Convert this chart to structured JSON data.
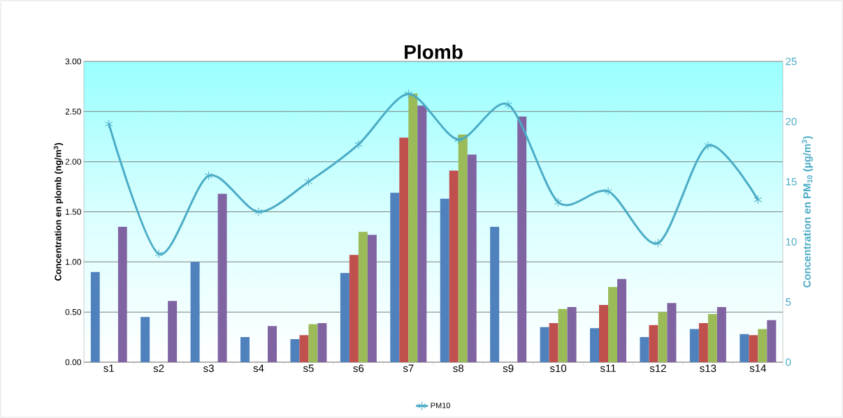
{
  "chart_data": {
    "type": "bar",
    "title": "Plomb",
    "ylabel": "Concentration en plomb (ng/m$^{3}$)",
    "y2label": "Concentration en PM$_{10}$ (µg/m$^{3}$)",
    "categories": [
      "s1",
      "s2",
      "s3",
      "s4",
      "s5",
      "s6",
      "s7",
      "s8",
      "s9",
      "s10",
      "s11",
      "s12",
      "s13",
      "s14"
    ],
    "series": [
      {
        "color": "#4f81bd",
        "values": [
          0.9,
          0.45,
          1.0,
          0.25,
          0.23,
          0.89,
          1.69,
          1.63,
          1.35,
          0.35,
          0.34,
          0.25,
          0.33,
          0.28
        ]
      },
      {
        "color": "#c0504d",
        "values": [
          null,
          null,
          null,
          null,
          0.27,
          1.07,
          2.24,
          1.91,
          null,
          0.39,
          0.57,
          0.37,
          0.39,
          0.27
        ]
      },
      {
        "color": "#9bbb59",
        "values": [
          null,
          null,
          null,
          null,
          0.38,
          1.3,
          2.68,
          2.27,
          null,
          0.53,
          0.75,
          0.5,
          0.48,
          0.33
        ]
      },
      {
        "color": "#8064a2",
        "values": [
          1.35,
          0.61,
          1.68,
          0.36,
          0.39,
          1.27,
          2.56,
          2.07,
          2.45,
          0.55,
          0.83,
          0.59,
          0.55,
          0.42
        ]
      },
      {
        "name": "PM10",
        "type": "line",
        "axis": "y2",
        "marker": "cross",
        "color": "#4bacc6",
        "values": [
          19.8,
          9.0,
          15.5,
          12.5,
          15.0,
          18.1,
          22.3,
          18.5,
          21.4,
          13.3,
          14.2,
          9.9,
          18.0,
          13.5
        ]
      }
    ],
    "ylim": [
      0,
      3
    ],
    "yticks": [
      {
        "value": 0,
        "label": "0.00"
      },
      {
        "value": 0.5,
        "label": "0.50"
      },
      {
        "value": 1,
        "label": "1.00"
      },
      {
        "value": 1.5,
        "label": "1.50"
      },
      {
        "value": 2,
        "label": "2.00"
      },
      {
        "value": 2.5,
        "label": "2.50"
      },
      {
        "value": 3,
        "label": "3.00"
      }
    ],
    "y2lim": [
      0,
      25
    ],
    "y2ticks": [
      0,
      5,
      10,
      15,
      20,
      25
    ],
    "grid": "y",
    "legend": "bottom"
  }
}
